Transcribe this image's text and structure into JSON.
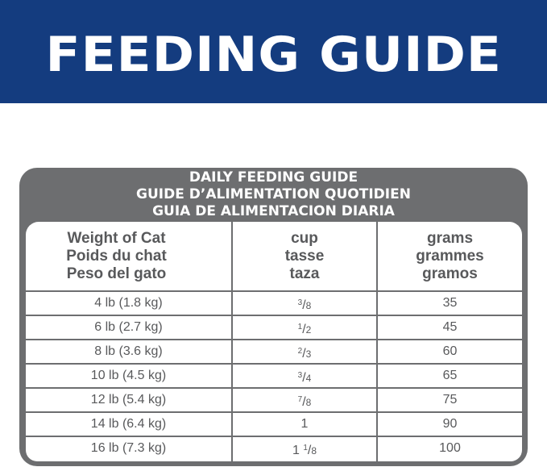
{
  "banner": {
    "title": "FEEDING GUIDE",
    "color": "#143c7f"
  },
  "table": {
    "titles": [
      "DAILY FEEDING GUIDE",
      "GUIDE D’ALIMENTATION QUOTIDIEN",
      "GUIA DE ALIMENTACION DIARIA"
    ],
    "frame_color": "#6d6e70",
    "headers": [
      [
        "Weight of Cat",
        "Poids du chat",
        "Peso del gato"
      ],
      [
        "cup",
        "tasse",
        "taza"
      ],
      [
        "grams",
        "grammes",
        "gramos"
      ]
    ],
    "rows": [
      {
        "weight": "4 lb (1.8 kg)",
        "cup": {
          "whole": "",
          "num": "3",
          "den": "8"
        },
        "grams": "35"
      },
      {
        "weight": "6 lb (2.7 kg)",
        "cup": {
          "whole": "",
          "num": "1",
          "den": "2"
        },
        "grams": "45"
      },
      {
        "weight": "8 lb (3.6 kg)",
        "cup": {
          "whole": "",
          "num": "2",
          "den": "3"
        },
        "grams": "60"
      },
      {
        "weight": "10 lb (4.5 kg)",
        "cup": {
          "whole": "",
          "num": "3",
          "den": "4"
        },
        "grams": "65"
      },
      {
        "weight": "12 lb (5.4 kg)",
        "cup": {
          "whole": "",
          "num": "7",
          "den": "8"
        },
        "grams": "75"
      },
      {
        "weight": "14 lb (6.4 kg)",
        "cup": {
          "whole": "1",
          "num": "",
          "den": ""
        },
        "grams": "90"
      },
      {
        "weight": "16 lb (7.3 kg)",
        "cup": {
          "whole": "1",
          "num": "1",
          "den": "8"
        },
        "grams": "100"
      }
    ]
  }
}
